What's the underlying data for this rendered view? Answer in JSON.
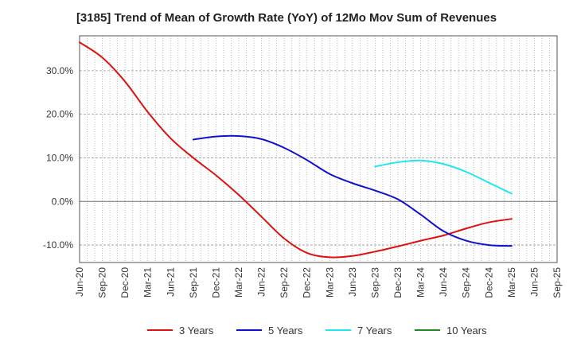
{
  "chart_data": {
    "type": "line",
    "title": "[3185]  Trend of Mean of Growth Rate (YoY) of 12Mo Mov Sum of Revenues",
    "xlabel": "",
    "ylabel": "",
    "ylim": [
      -14,
      38
    ],
    "yticks": [
      -10,
      0,
      10,
      20,
      30
    ],
    "ytick_labels": [
      "-10.0%",
      "0.0%",
      "10.0%",
      "20.0%",
      "30.0%"
    ],
    "x_labels": [
      "Jun-20",
      "Sep-20",
      "Dec-20",
      "Mar-21",
      "Jun-21",
      "Sep-21",
      "Dec-21",
      "Mar-22",
      "Jun-22",
      "Sep-22",
      "Dec-22",
      "Mar-23",
      "Jun-23",
      "Sep-23",
      "Dec-23",
      "Mar-24",
      "Jun-24",
      "Sep-24",
      "Dec-24",
      "Mar-25",
      "Jun-25",
      "Sep-25"
    ],
    "grid": true,
    "legend_position": "bottom",
    "series": [
      {
        "name": "3 Years",
        "color": "#dd1111",
        "points": [
          [
            0,
            36.5
          ],
          [
            1,
            33
          ],
          [
            2,
            27.5
          ],
          [
            3,
            20.5
          ],
          [
            4,
            14.5
          ],
          [
            5,
            10
          ],
          [
            6,
            6
          ],
          [
            7,
            1.5
          ],
          [
            8,
            -3.5
          ],
          [
            9,
            -8.5
          ],
          [
            10,
            -11.8
          ],
          [
            11,
            -12.8
          ],
          [
            12,
            -12.5
          ],
          [
            13,
            -11.5
          ],
          [
            14,
            -10.3
          ],
          [
            15,
            -9
          ],
          [
            16,
            -7.8
          ],
          [
            17,
            -6.2
          ],
          [
            18,
            -4.8
          ],
          [
            19,
            -4
          ]
        ]
      },
      {
        "name": "5 Years",
        "color": "#1111cc",
        "points": [
          [
            5,
            14.2
          ],
          [
            6,
            14.9
          ],
          [
            7,
            15
          ],
          [
            8,
            14.3
          ],
          [
            9,
            12.3
          ],
          [
            10,
            9.5
          ],
          [
            11,
            6.3
          ],
          [
            12,
            4.2
          ],
          [
            13,
            2.5
          ],
          [
            14,
            0.5
          ],
          [
            15,
            -3
          ],
          [
            16,
            -6.8
          ],
          [
            17,
            -9
          ],
          [
            18,
            -10
          ],
          [
            19,
            -10.2
          ]
        ]
      },
      {
        "name": "7 Years",
        "color": "#22e6ee",
        "points": [
          [
            13,
            8
          ],
          [
            14,
            9
          ],
          [
            15,
            9.4
          ],
          [
            16,
            8.6
          ],
          [
            17,
            6.8
          ],
          [
            18,
            4.3
          ],
          [
            19,
            1.8
          ]
        ]
      },
      {
        "name": "10 Years",
        "color": "#228822",
        "points": []
      }
    ]
  }
}
